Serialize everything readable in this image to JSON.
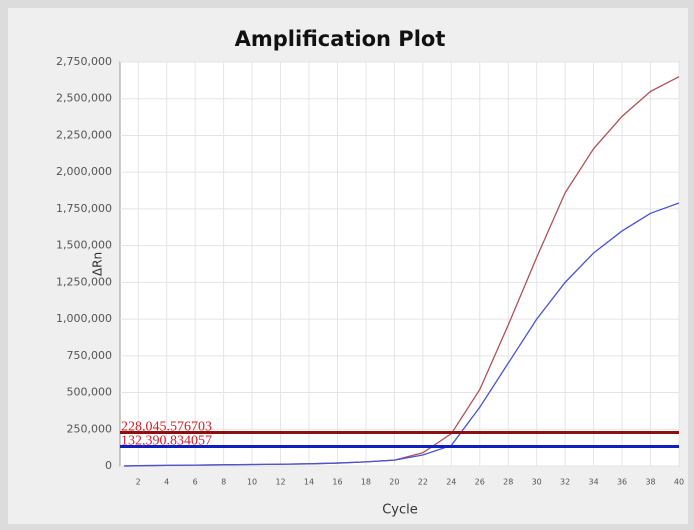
{
  "chart_data": {
    "type": "line",
    "title": "Amplification Plot",
    "xlabel": "Cycle",
    "ylabel": "ΔRn",
    "x": [
      1,
      2,
      4,
      6,
      8,
      10,
      12,
      14,
      16,
      18,
      20,
      22,
      24,
      26,
      28,
      30,
      32,
      34,
      36,
      38,
      40
    ],
    "series": [
      {
        "color": "#b0505a",
        "values": [
          0,
          2000,
          4000,
          6000,
          8000,
          10000,
          12000,
          15000,
          20000,
          28000,
          40000,
          90000,
          220000,
          520000,
          960000,
          1420000,
          1860000,
          2160000,
          2380000,
          2550000,
          2650000
        ]
      },
      {
        "color": "#4a55d0",
        "values": [
          0,
          2000,
          4000,
          6000,
          8000,
          10000,
          12000,
          15000,
          20000,
          28000,
          40000,
          75000,
          140000,
          400000,
          700000,
          1000000,
          1250000,
          1450000,
          1600000,
          1720000,
          1790000
        ]
      }
    ],
    "thresholds": [
      {
        "value": 228045.576703,
        "label": "228,045.576703",
        "color": "#8b1010"
      },
      {
        "value": 132390.834057,
        "label": "132,390.834057",
        "color": "#1020c0"
      }
    ],
    "xlim": [
      1,
      40
    ],
    "xticks": [
      2,
      4,
      6,
      8,
      10,
      12,
      14,
      16,
      18,
      20,
      22,
      24,
      26,
      28,
      30,
      32,
      34,
      36,
      38,
      40
    ],
    "ylim": [
      0,
      2750000
    ],
    "yticks": [
      0,
      {
        "value": 250000,
        "label": "250,000"
      },
      {
        "value": 500000,
        "label": "500,000"
      },
      {
        "value": 750000,
        "label": "750,000"
      },
      {
        "value": 1000000,
        "label": "1,000,000"
      },
      {
        "value": 1250000,
        "label": "1,250,000"
      },
      {
        "value": 1500000,
        "label": "1,500,000"
      },
      {
        "value": 1750000,
        "label": "1,750,000"
      },
      {
        "value": 2000000,
        "label": "2,000,000"
      },
      {
        "value": 2250000,
        "label": "2,250,000"
      },
      {
        "value": 2500000,
        "label": "2,500,000"
      },
      {
        "value": 2750000,
        "label": "2,750,000"
      }
    ],
    "grid": true
  }
}
